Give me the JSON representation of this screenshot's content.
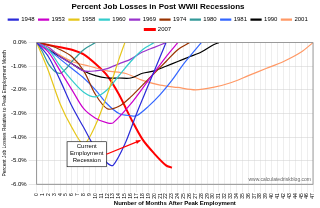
{
  "chart_data": {
    "type": "line",
    "title": "Percent Job Losses in Post WWII Recessions",
    "x_label": "Number of Months After Peak Employment",
    "y_label": "Percent Job Losses Relative to Peak Employment Month",
    "annotations": [
      "Current Employment Recession"
    ],
    "source": "www.calculatedriskblog.com",
    "grid": true,
    "legend": "top",
    "xlim": [
      0,
      47
    ],
    "xticks": [
      0,
      1,
      2,
      3,
      4,
      5,
      6,
      7,
      8,
      9,
      10,
      11,
      12,
      13,
      14,
      15,
      16,
      17,
      18,
      19,
      20,
      21,
      22,
      23,
      24,
      25,
      26,
      27,
      28,
      29,
      30,
      31,
      32,
      33,
      34,
      35,
      36,
      37,
      38,
      39,
      40,
      41,
      42,
      43,
      44,
      45,
      46,
      47
    ],
    "ylim": [
      -6,
      0
    ],
    "yticks": [
      {
        "value": 0,
        "label": "0.0%"
      },
      {
        "value": -1,
        "label": "-1.0%"
      },
      {
        "value": -2,
        "label": "-2.0%"
      },
      {
        "value": -3,
        "label": "-3.0%"
      },
      {
        "value": -4,
        "label": "-4.0%"
      },
      {
        "value": -5,
        "label": "-5.0%"
      },
      {
        "value": -6,
        "label": "-6.0%"
      }
    ],
    "series": [
      {
        "name": "1948",
        "color": "#2b2bd9",
        "x": [
          0,
          2,
          4,
          6,
          8,
          10,
          12,
          13,
          15,
          17,
          19,
          21,
          22
        ],
        "values": [
          0,
          -0.6,
          -1.6,
          -2.7,
          -3.6,
          -4.5,
          -5.1,
          -5.2,
          -4.3,
          -3.0,
          -1.8,
          -0.6,
          0
        ]
      },
      {
        "name": "1953",
        "color": "#cc00cc",
        "x": [
          0,
          2,
          4,
          6,
          8,
          10,
          12,
          13,
          16,
          19,
          22,
          24
        ],
        "values": [
          0,
          -0.4,
          -1.2,
          -2.0,
          -2.8,
          -3.2,
          -3.4,
          -3.4,
          -2.6,
          -1.6,
          -0.6,
          0
        ]
      },
      {
        "name": "1958",
        "color": "#e6c619",
        "x": [
          0,
          2,
          4,
          6,
          8,
          10,
          12,
          14,
          15
        ],
        "values": [
          0,
          -1.2,
          -2.6,
          -3.6,
          -4.3,
          -3.5,
          -2.2,
          -0.7,
          0
        ]
      },
      {
        "name": "1960",
        "color": "#33cccc",
        "x": [
          0,
          2,
          4,
          6,
          8,
          10,
          12,
          14,
          16,
          18,
          20
        ],
        "values": [
          0,
          -0.3,
          -1.0,
          -1.6,
          -2.1,
          -2.3,
          -2.0,
          -1.4,
          -0.8,
          -0.3,
          0
        ]
      },
      {
        "name": "1969",
        "color": "#9933cc",
        "x": [
          0,
          2,
          4,
          6,
          8,
          10,
          12,
          14,
          16,
          18,
          20,
          22
        ],
        "values": [
          0,
          -0.2,
          -0.6,
          -0.9,
          -1.2,
          -1.2,
          -1.1,
          -0.9,
          -0.7,
          -0.4,
          -0.2,
          0
        ]
      },
      {
        "name": "1974",
        "color": "#993300",
        "x": [
          0,
          2,
          4,
          6,
          8,
          10,
          12,
          14,
          16,
          18,
          20,
          22,
          24,
          26
        ],
        "values": [
          0,
          -0.1,
          -0.3,
          -0.6,
          -1.2,
          -2.2,
          -2.8,
          -2.7,
          -2.3,
          -1.8,
          -1.3,
          -0.8,
          -0.3,
          0
        ]
      },
      {
        "name": "1980",
        "color": "#339999",
        "x": [
          0,
          1,
          2,
          3,
          4,
          5,
          6,
          8,
          10
        ],
        "values": [
          0,
          -0.4,
          -0.9,
          -1.2,
          -1.3,
          -1.1,
          -0.8,
          -0.3,
          0
        ]
      },
      {
        "name": "1981",
        "color": "#3366ff",
        "x": [
          0,
          2,
          4,
          6,
          8,
          10,
          12,
          14,
          16,
          17,
          19,
          21,
          23,
          25,
          27,
          28
        ],
        "values": [
          0,
          -0.3,
          -0.7,
          -1.1,
          -1.5,
          -2.0,
          -2.6,
          -3.0,
          -3.1,
          -3.1,
          -2.7,
          -2.2,
          -1.6,
          -0.9,
          -0.3,
          0
        ]
      },
      {
        "name": "1990",
        "color": "#000000",
        "x": [
          0,
          2,
          4,
          6,
          8,
          10,
          12,
          14,
          16,
          18,
          20,
          22,
          24,
          26,
          28,
          30,
          31
        ],
        "values": [
          0,
          -0.3,
          -0.6,
          -0.9,
          -1.2,
          -1.4,
          -1.5,
          -1.5,
          -1.5,
          -1.3,
          -1.2,
          -1.0,
          -0.8,
          -0.6,
          -0.4,
          -0.1,
          0
        ]
      },
      {
        "name": "2001",
        "color": "#ff9966",
        "x": [
          0,
          3,
          6,
          9,
          12,
          15,
          18,
          21,
          24,
          27,
          30,
          33,
          36,
          39,
          42,
          45,
          47
        ],
        "values": [
          0,
          -0.4,
          -0.8,
          -1.0,
          -1.2,
          -1.3,
          -1.6,
          -1.8,
          -1.9,
          -2.0,
          -1.9,
          -1.7,
          -1.4,
          -1.1,
          -0.8,
          -0.4,
          0
        ]
      },
      {
        "name": "2007",
        "color": "#ff0000",
        "x": [
          0,
          2,
          4,
          6,
          8,
          10,
          12,
          14,
          16,
          18,
          20,
          22,
          23
        ],
        "values": [
          0,
          -0.1,
          -0.2,
          -0.3,
          -0.5,
          -0.9,
          -1.4,
          -2.2,
          -3.2,
          -4.1,
          -4.7,
          -5.2,
          -5.3
        ]
      }
    ]
  }
}
